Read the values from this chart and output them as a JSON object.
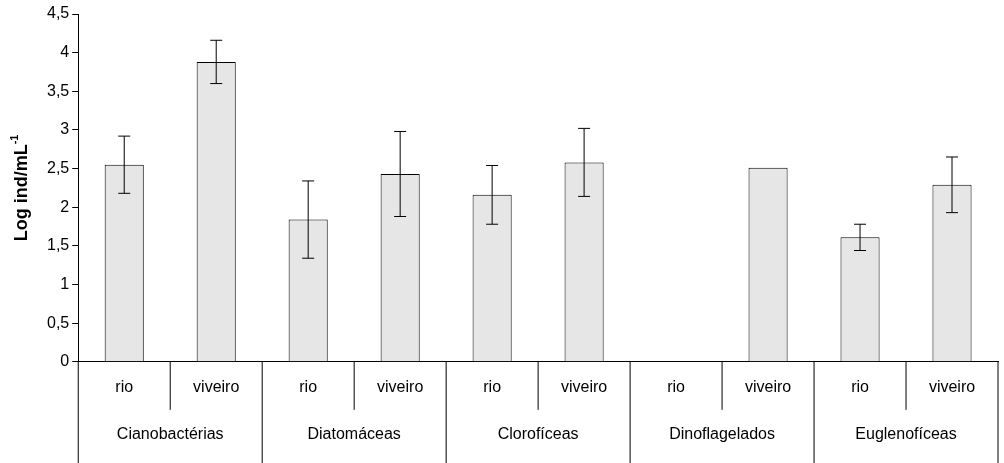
{
  "chart_data": {
    "type": "bar",
    "ylabel": "Log ind/mL$^{-1}$",
    "categories": [
      "rio",
      "viveiro",
      "rio",
      "viveiro",
      "rio",
      "viveiro",
      "rio",
      "viveiro",
      "rio",
      "viveiro"
    ],
    "annotations": [
      "Cianobactérias",
      "Diatomáceas",
      "Clorofíceas",
      "Dinoflagelados",
      "Euglenofíceas"
    ],
    "values": [
      2.55,
      3.88,
      1.84,
      2.43,
      2.16,
      2.58,
      null,
      2.51,
      1.61,
      2.29
    ],
    "errors": [
      0.37,
      0.28,
      0.5,
      0.55,
      0.38,
      0.44,
      null,
      null,
      0.17,
      0.36
    ],
    "color": "#e6e6e6",
    "ylim": [
      0,
      4.5
    ],
    "yticks": [
      {
        "value": 0,
        "label": "0"
      },
      {
        "value": 0.5,
        "label": "0,5"
      },
      {
        "value": 1,
        "label": "1"
      },
      {
        "value": 1.5,
        "label": "1,5"
      },
      {
        "value": 2,
        "label": "2"
      },
      {
        "value": 2.5,
        "label": "2,5"
      },
      {
        "value": 3,
        "label": "3"
      },
      {
        "value": 3.5,
        "label": "3,5"
      },
      {
        "value": 4,
        "label": "4"
      },
      {
        "value": 4.5,
        "label": "4,5"
      }
    ],
    "grid": false,
    "legend": false
  }
}
